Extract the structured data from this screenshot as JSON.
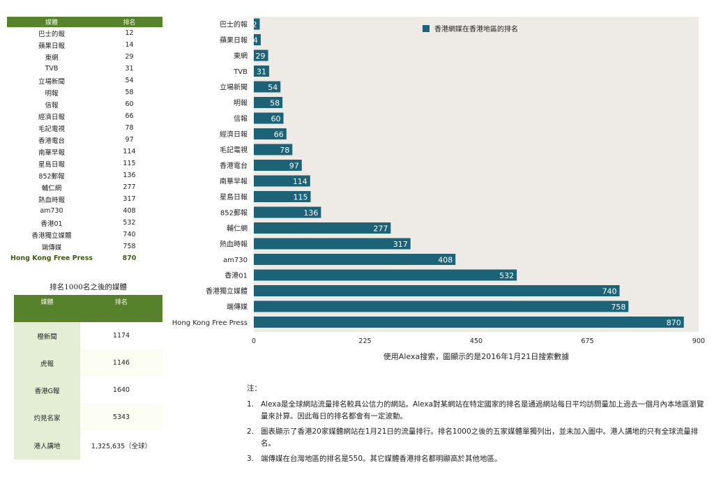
{
  "table1": {
    "headers": [
      "媒體",
      "排名"
    ],
    "rows": [
      [
        "巴士的報",
        "12"
      ],
      [
        "蘋果日報",
        "14"
      ],
      [
        "東網",
        "29"
      ],
      [
        "TVB",
        "31"
      ],
      [
        "立場新聞",
        "54"
      ],
      [
        "明報",
        "58"
      ],
      [
        "信報",
        "60"
      ],
      [
        "經濟日報",
        "66"
      ],
      [
        "毛記電視",
        "78"
      ],
      [
        "香港電台",
        "97"
      ],
      [
        "南華早報",
        "114"
      ],
      [
        "星島日報",
        "115"
      ],
      [
        "852郵報",
        "136"
      ],
      [
        "輔仁網",
        "277"
      ],
      [
        "熱血時報",
        "317"
      ],
      [
        "am730",
        "408"
      ],
      [
        "香港01",
        "532"
      ],
      [
        "香港獨立媒體",
        "740"
      ],
      [
        "端傳媒",
        "758"
      ],
      [
        "Hong Kong Free Press",
        "870"
      ]
    ]
  },
  "table2": {
    "title": "排名1000名之後的媒體",
    "headers": [
      "媒體",
      "排名"
    ],
    "rows": [
      [
        "橙新聞",
        "1174"
      ],
      [
        "虎報",
        "1146"
      ],
      [
        "香港G報",
        "1640"
      ],
      [
        "灼見名家",
        "5343"
      ],
      [
        "港人講地",
        "1,325,635（全球）"
      ]
    ]
  },
  "chart_data": {
    "type": "bar",
    "orientation": "horizontal",
    "categories": [
      "巴士的報",
      "蘋果日報",
      "東網",
      "TVB",
      "立場新聞",
      "明報",
      "信報",
      "經濟日報",
      "毛記電視",
      "香港電台",
      "南華早報",
      "星島日報",
      "852郵報",
      "輔仁網",
      "熱血時報",
      "am730",
      "香港01",
      "香港獨立媒體",
      "端傳媒",
      "Hong Kong Free Press"
    ],
    "series": [
      {
        "name": "香港網媒在香港地區的排名",
        "values": [
          12,
          14,
          29,
          31,
          54,
          58,
          60,
          66,
          78,
          97,
          114,
          115,
          136,
          277,
          317,
          408,
          532,
          740,
          758,
          870
        ],
        "color": "#1d6378"
      }
    ],
    "xlim": [
      0,
      900
    ],
    "xticks": [
      "0",
      "225",
      "450",
      "675",
      "900"
    ],
    "xlabel": "使用Alexa搜索，圖顯示的是2016年1月21日搜索數據",
    "legend_position": "top-right",
    "grid": false,
    "plot_background": "#eeebe6",
    "data_labels": true
  },
  "notes": {
    "head": "注：",
    "items": [
      {
        "num": "1.",
        "text": "Alexa是全球網站流量排名較具公信力的網站。Alexa對某網站在特定國家的排名是通過網站每日平均訪問量加上過去一個月內本地區瀏覽量來計算。因此每日的排名都會有一定波動。"
      },
      {
        "num": "2.",
        "text": "圖表顯示了香港20家媒體網站在1月21日的流量排行。排名1000之後的五家媒體單獨列出，並未加入圖中。港人講地的只有全球流量排名。"
      },
      {
        "num": "3.",
        "text": "端傳媒在台灣地區的排名是550。其它媒體香港排名都明顯高於其他地區。"
      }
    ]
  }
}
